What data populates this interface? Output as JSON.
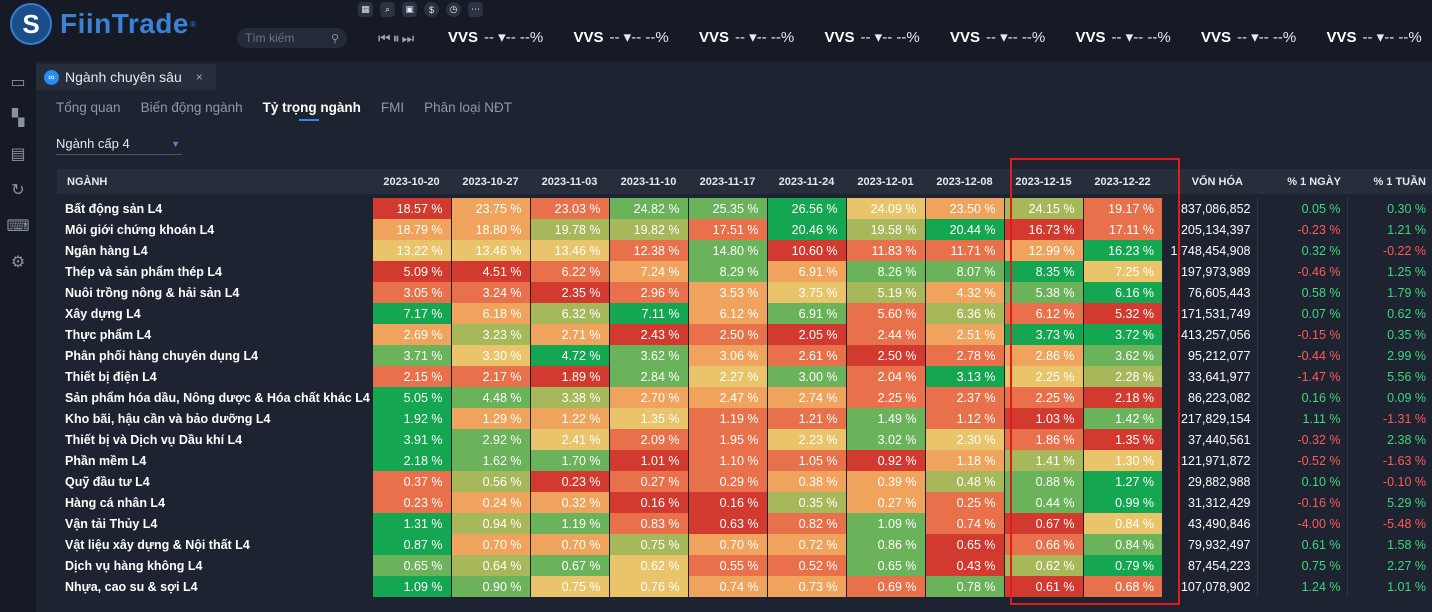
{
  "app": {
    "name": "FiinTrade",
    "reg": "®"
  },
  "search": {
    "placeholder": "Tìm kiếm"
  },
  "toolbar": {
    "player": "⏮⏸⏭"
  },
  "ticker": [
    {
      "sym": "VVS",
      "val": "-- ▾-- --%"
    },
    {
      "sym": "VVS",
      "val": "-- ▾-- --%"
    },
    {
      "sym": "VVS",
      "val": "-- ▾-- --%"
    },
    {
      "sym": "VVS",
      "val": "-- ▾-- --%"
    },
    {
      "sym": "VVS",
      "val": "-- ▾-- --%"
    },
    {
      "sym": "VVS",
      "val": "-- ▾-- --%"
    },
    {
      "sym": "VVS",
      "val": "-- ▾-- --%"
    },
    {
      "sym": "VVS",
      "val": "-- ▾-- --%"
    }
  ],
  "panel": {
    "title": "Ngành chuyên sâu",
    "close": "×"
  },
  "tabs": [
    "Tổng quan",
    "Biến động ngành",
    "Tỷ trọng ngành",
    "FMI",
    "Phân loại NĐT"
  ],
  "active_tab": 2,
  "level_select": {
    "value": "Ngành cấp 4"
  },
  "table": {
    "headers": {
      "name": "NGÀNH",
      "dates": [
        "2023-10-20",
        "2023-10-27",
        "2023-11-03",
        "2023-11-10",
        "2023-11-17",
        "2023-11-24",
        "2023-12-01",
        "2023-12-08",
        "2023-12-15",
        "2023-12-22"
      ],
      "cap": "VỐN HÓA",
      "d1": "% 1 NGÀY",
      "w1": "% 1 TUẦN"
    },
    "colors": {
      "red": "#d33a2f",
      "orange": "#e8714b",
      "light_orange": "#f0a35c",
      "yellow": "#e9c46a",
      "olive": "#a7b85a",
      "light_green": "#6bb35a",
      "green": "#14a651",
      "pos_text": "#3fd77a",
      "neg_text": "#ff5a5a"
    },
    "rows": [
      {
        "name": "Bất động sản L4",
        "vals": [
          "18.57 %",
          "23.75 %",
          "23.03 %",
          "24.82 %",
          "25.35 %",
          "26.56 %",
          "24.09 %",
          "23.50 %",
          "24.15 %",
          "19.17 %"
        ],
        "cells": [
          "red",
          "light_orange",
          "orange",
          "light_green",
          "light_green",
          "green",
          "yellow",
          "light_orange",
          "olive",
          "orange"
        ],
        "cap": "837,086,852",
        "d1": "0.05 %",
        "w1": "0.30 %",
        "d1s": "pos",
        "w1s": "pos"
      },
      {
        "name": "Môi giới chứng khoán L4",
        "vals": [
          "18.79 %",
          "18.80 %",
          "19.78 %",
          "19.82 %",
          "17.51 %",
          "20.46 %",
          "19.58 %",
          "20.44 %",
          "16.73 %",
          "17.11 %"
        ],
        "cells": [
          "light_orange",
          "light_orange",
          "olive",
          "olive",
          "orange",
          "green",
          "olive",
          "green",
          "red",
          "orange"
        ],
        "cap": "205,134,397",
        "d1": "-0.23 %",
        "w1": "1.21 %",
        "d1s": "neg",
        "w1s": "pos"
      },
      {
        "name": "Ngân hàng L4",
        "vals": [
          "13.22 %",
          "13.46 %",
          "13.46 %",
          "12.38 %",
          "14.80 %",
          "10.60 %",
          "11.83 %",
          "11.71 %",
          "12.99 %",
          "16.23 %"
        ],
        "cells": [
          "yellow",
          "yellow",
          "yellow",
          "orange",
          "light_green",
          "red",
          "orange",
          "orange",
          "light_orange",
          "green"
        ],
        "cap": "1,748,454,908",
        "d1": "0.32 %",
        "w1": "-0.22 %",
        "d1s": "pos",
        "w1s": "neg"
      },
      {
        "name": "Thép và sản phẩm thép L4",
        "vals": [
          "5.09 %",
          "4.51 %",
          "6.22 %",
          "7.24 %",
          "8.29 %",
          "6.91 %",
          "8.26 %",
          "8.07 %",
          "8.35 %",
          "7.25 %"
        ],
        "cells": [
          "red",
          "red",
          "orange",
          "light_orange",
          "light_green",
          "light_orange",
          "light_green",
          "light_green",
          "green",
          "yellow"
        ],
        "cap": "197,973,989",
        "d1": "-0.46 %",
        "w1": "1.25 %",
        "d1s": "neg",
        "w1s": "pos"
      },
      {
        "name": "Nuôi trồng nông & hải sản L4",
        "vals": [
          "3.05 %",
          "3.24 %",
          "2.35 %",
          "2.96 %",
          "3.53 %",
          "3.75 %",
          "5.19 %",
          "4.32 %",
          "5.38 %",
          "6.16 %"
        ],
        "cells": [
          "orange",
          "orange",
          "red",
          "orange",
          "light_orange",
          "yellow",
          "olive",
          "light_orange",
          "light_green",
          "green"
        ],
        "cap": "76,605,443",
        "d1": "0.58 %",
        "w1": "1.79 %",
        "d1s": "pos",
        "w1s": "pos"
      },
      {
        "name": "Xây dựng L4",
        "vals": [
          "7.17 %",
          "6.18 %",
          "6.32 %",
          "7.11 %",
          "6.12 %",
          "6.91 %",
          "5.60 %",
          "6.36 %",
          "6.12 %",
          "5.32 %"
        ],
        "cells": [
          "green",
          "light_orange",
          "olive",
          "green",
          "light_orange",
          "light_green",
          "orange",
          "olive",
          "orange",
          "red"
        ],
        "cap": "171,531,749",
        "d1": "0.07 %",
        "w1": "0.62 %",
        "d1s": "pos",
        "w1s": "pos"
      },
      {
        "name": "Thực phẩm L4",
        "vals": [
          "2.69 %",
          "3.23 %",
          "2.71 %",
          "2.43 %",
          "2.50 %",
          "2.05 %",
          "2.44 %",
          "2.51 %",
          "3.73 %",
          "3.72 %"
        ],
        "cells": [
          "light_orange",
          "olive",
          "light_orange",
          "red",
          "orange",
          "red",
          "orange",
          "light_orange",
          "green",
          "green"
        ],
        "cap": "413,257,056",
        "d1": "-0.15 %",
        "w1": "0.35 %",
        "d1s": "neg",
        "w1s": "pos"
      },
      {
        "name": "Phân phối hàng chuyên dụng L4",
        "vals": [
          "3.71 %",
          "3.30 %",
          "4.72 %",
          "3.62 %",
          "3.06 %",
          "2.61 %",
          "2.50 %",
          "2.78 %",
          "2.86 %",
          "3.62 %"
        ],
        "cells": [
          "light_green",
          "yellow",
          "green",
          "light_green",
          "light_orange",
          "orange",
          "red",
          "orange",
          "light_orange",
          "light_green"
        ],
        "cap": "95,212,077",
        "d1": "-0.44 %",
        "w1": "2.99 %",
        "d1s": "neg",
        "w1s": "pos"
      },
      {
        "name": "Thiết bị điện L4",
        "vals": [
          "2.15 %",
          "2.17 %",
          "1.89 %",
          "2.84 %",
          "2.27 %",
          "3.00 %",
          "2.04 %",
          "3.13 %",
          "2.25 %",
          "2.28 %"
        ],
        "cells": [
          "orange",
          "orange",
          "red",
          "light_green",
          "yellow",
          "light_green",
          "orange",
          "green",
          "yellow",
          "olive"
        ],
        "cap": "33,641,977",
        "d1": "-1.47 %",
        "w1": "5.56 %",
        "d1s": "neg",
        "w1s": "pos"
      },
      {
        "name": "Sản phẩm hóa dầu, Nông dược & Hóa chất khác L4",
        "vals": [
          "5.05 %",
          "4.48 %",
          "3.38 %",
          "2.70 %",
          "2.47 %",
          "2.74 %",
          "2.25 %",
          "2.37 %",
          "2.25 %",
          "2.18 %"
        ],
        "cells": [
          "green",
          "light_green",
          "olive",
          "light_orange",
          "light_orange",
          "light_orange",
          "orange",
          "orange",
          "orange",
          "red"
        ],
        "cap": "86,223,082",
        "d1": "0.16 %",
        "w1": "0.09 %",
        "d1s": "pos",
        "w1s": "pos"
      },
      {
        "name": "Kho bãi, hậu cần và bảo dưỡng L4",
        "vals": [
          "1.92 %",
          "1.29 %",
          "1.22 %",
          "1.35 %",
          "1.19 %",
          "1.21 %",
          "1.49 %",
          "1.12 %",
          "1.03 %",
          "1.42 %"
        ],
        "cells": [
          "green",
          "light_orange",
          "light_orange",
          "yellow",
          "orange",
          "orange",
          "light_green",
          "orange",
          "red",
          "light_green"
        ],
        "cap": "217,829,154",
        "d1": "1.11 %",
        "w1": "-1.31 %",
        "d1s": "pos",
        "w1s": "neg"
      },
      {
        "name": "Thiết bị và Dịch vụ Dầu khí L4",
        "vals": [
          "3.91 %",
          "2.92 %",
          "2.41 %",
          "2.09 %",
          "1.95 %",
          "2.23 %",
          "3.02 %",
          "2.30 %",
          "1.86 %",
          "1.35 %"
        ],
        "cells": [
          "green",
          "light_green",
          "yellow",
          "orange",
          "orange",
          "yellow",
          "light_green",
          "yellow",
          "orange",
          "red"
        ],
        "cap": "37,440,561",
        "d1": "-0.32 %",
        "w1": "2.38 %",
        "d1s": "neg",
        "w1s": "pos"
      },
      {
        "name": "Phần mềm L4",
        "vals": [
          "2.18 %",
          "1.62 %",
          "1.70 %",
          "1.01 %",
          "1.10 %",
          "1.05 %",
          "0.92 %",
          "1.18 %",
          "1.41 %",
          "1.30 %"
        ],
        "cells": [
          "green",
          "light_green",
          "light_green",
          "red",
          "orange",
          "orange",
          "red",
          "light_orange",
          "olive",
          "yellow"
        ],
        "cap": "121,971,872",
        "d1": "-0.52 %",
        "w1": "-1.63 %",
        "d1s": "neg",
        "w1s": "neg"
      },
      {
        "name": "Quỹ đầu tư L4",
        "vals": [
          "0.37 %",
          "0.56 %",
          "0.23 %",
          "0.27 %",
          "0.29 %",
          "0.38 %",
          "0.39 %",
          "0.48 %",
          "0.88 %",
          "1.27 %"
        ],
        "cells": [
          "orange",
          "olive",
          "red",
          "orange",
          "orange",
          "light_orange",
          "light_orange",
          "olive",
          "light_green",
          "green"
        ],
        "cap": "29,882,988",
        "d1": "0.10 %",
        "w1": "-0.10 %",
        "d1s": "pos",
        "w1s": "neg"
      },
      {
        "name": "Hàng cá nhân L4",
        "vals": [
          "0.23 %",
          "0.24 %",
          "0.32 %",
          "0.16 %",
          "0.16 %",
          "0.35 %",
          "0.27 %",
          "0.25 %",
          "0.44 %",
          "0.99 %"
        ],
        "cells": [
          "orange",
          "light_orange",
          "light_orange",
          "red",
          "red",
          "olive",
          "light_orange",
          "orange",
          "light_green",
          "green"
        ],
        "cap": "31,312,429",
        "d1": "-0.16 %",
        "w1": "5.29 %",
        "d1s": "neg",
        "w1s": "pos"
      },
      {
        "name": "Vận tải Thủy L4",
        "vals": [
          "1.31 %",
          "0.94 %",
          "1.19 %",
          "0.83 %",
          "0.63 %",
          "0.82 %",
          "1.09 %",
          "0.74 %",
          "0.67 %",
          "0.84 %"
        ],
        "cells": [
          "green",
          "olive",
          "light_green",
          "orange",
          "red",
          "orange",
          "light_green",
          "orange",
          "red",
          "yellow"
        ],
        "cap": "43,490,846",
        "d1": "-4.00 %",
        "w1": "-5.48 %",
        "d1s": "neg",
        "w1s": "neg"
      },
      {
        "name": "Vật liệu xây dựng & Nội thất L4",
        "vals": [
          "0.87 %",
          "0.70 %",
          "0.70 %",
          "0.75 %",
          "0.70 %",
          "0.72 %",
          "0.86 %",
          "0.65 %",
          "0.66 %",
          "0.84 %"
        ],
        "cells": [
          "green",
          "light_orange",
          "light_orange",
          "olive",
          "light_orange",
          "light_orange",
          "light_green",
          "red",
          "orange",
          "light_green"
        ],
        "cap": "79,932,497",
        "d1": "0.61 %",
        "w1": "1.58 %",
        "d1s": "pos",
        "w1s": "pos"
      },
      {
        "name": "Dịch vụ hàng không L4",
        "vals": [
          "0.65 %",
          "0.64 %",
          "0.67 %",
          "0.62 %",
          "0.55 %",
          "0.52 %",
          "0.65 %",
          "0.43 %",
          "0.62 %",
          "0.79 %"
        ],
        "cells": [
          "light_green",
          "olive",
          "light_green",
          "yellow",
          "orange",
          "orange",
          "light_green",
          "red",
          "olive",
          "green"
        ],
        "cap": "87,454,223",
        "d1": "0.75 %",
        "w1": "2.27 %",
        "d1s": "pos",
        "w1s": "pos"
      },
      {
        "name": "Nhựa, cao su & sợi L4",
        "vals": [
          "1.09 %",
          "0.90 %",
          "0.75 %",
          "0.76 %",
          "0.74 %",
          "0.73 %",
          "0.69 %",
          "0.78 %",
          "0.61 %",
          "0.68 %"
        ],
        "cells": [
          "green",
          "light_green",
          "yellow",
          "yellow",
          "light_orange",
          "light_orange",
          "orange",
          "light_green",
          "red",
          "orange"
        ],
        "cap": "107,078,902",
        "d1": "1.24 %",
        "w1": "1.01 %",
        "d1s": "pos",
        "w1s": "pos"
      }
    ]
  }
}
